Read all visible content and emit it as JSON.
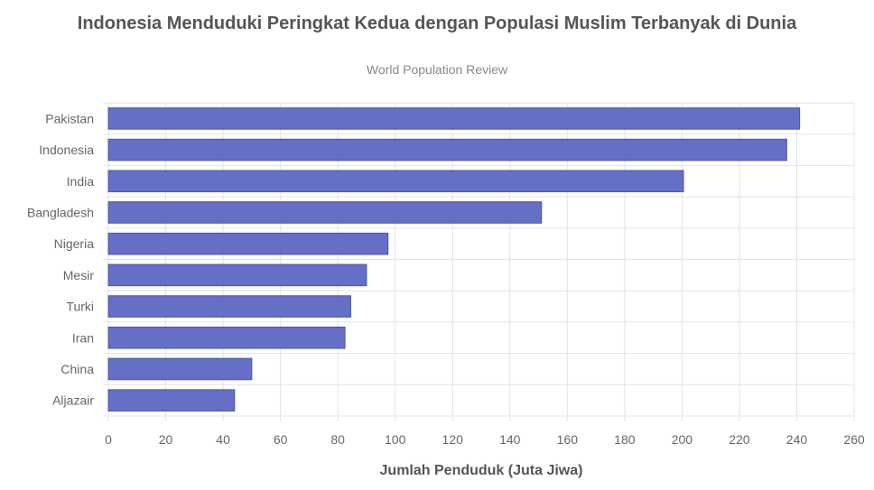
{
  "chart_data": {
    "type": "bar",
    "orientation": "horizontal",
    "title": "Indonesia Menduduki Peringkat Kedua dengan Populasi Muslim Terbanyak di Dunia",
    "subtitle": "World Population Review",
    "xlabel": "Jumlah Penduduk (Juta Jiwa)",
    "ylabel": "",
    "categories": [
      "Pakistan",
      "Indonesia",
      "India",
      "Bangladesh",
      "Nigeria",
      "Mesir",
      "Turki",
      "Iran",
      "China",
      "Aljazair"
    ],
    "values": [
      241,
      236.5,
      200.5,
      151,
      97.5,
      90,
      84.5,
      82.5,
      50,
      44
    ],
    "xlim": [
      0,
      260
    ],
    "xticks": [
      "0",
      "20",
      "40",
      "60",
      "80",
      "100",
      "120",
      "140",
      "160",
      "180",
      "200",
      "220",
      "240",
      "260"
    ],
    "grid": true,
    "bar_color": "#5c67c2"
  }
}
